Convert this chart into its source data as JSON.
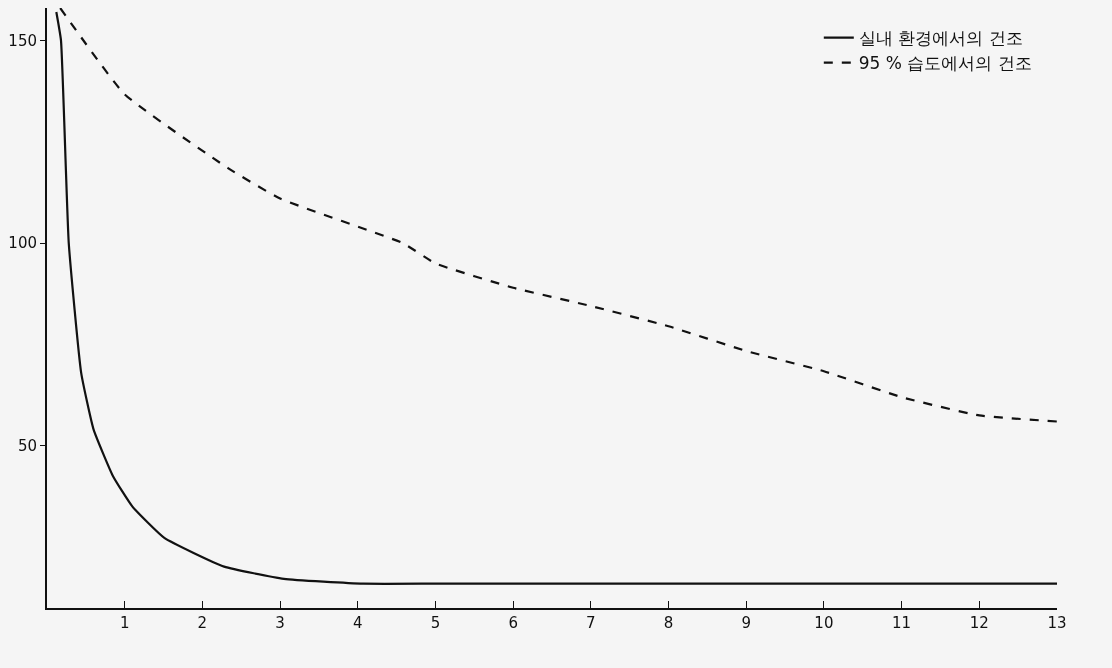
{
  "chart_data": {
    "type": "line",
    "x": [
      0.12,
      0.18,
      0.28,
      0.44,
      0.6,
      0.85,
      1.1,
      1.51,
      2.28,
      3.05,
      4.07,
      5,
      6,
      7,
      8,
      9,
      10,
      11,
      12,
      13
    ],
    "series": [
      {
        "name": "실내 환경에서의 건조",
        "color": "#111111",
        "line_style": "solid",
        "values": [
          157,
          150,
          100,
          68,
          54,
          42.5,
          35,
          27.3,
          20.2,
          17.2,
          16,
          16,
          16,
          16,
          16,
          16,
          16,
          16,
          16,
          16
        ]
      },
      {
        "name": "95 % 습도에서의 건조",
        "color": "#111111",
        "line_style": "dashed",
        "x": [
          0.17,
          1.0,
          2.33,
          3,
          4.58,
          5,
          6,
          7,
          8,
          9,
          10,
          11,
          12,
          13
        ],
        "values": [
          158,
          136.7,
          118.5,
          111,
          100,
          95,
          89,
          84.5,
          79.5,
          73.4,
          68.4,
          62,
          57.5,
          56
        ]
      }
    ],
    "xlim": [
      0,
      13
    ],
    "xticks": [
      1,
      2,
      3,
      4,
      5,
      6,
      7,
      8,
      9,
      10,
      11,
      12,
      13
    ],
    "ylim": [
      10,
      158
    ],
    "yticks": [
      50,
      100,
      150
    ],
    "grid": false,
    "legend": "top right",
    "marker": "none"
  }
}
